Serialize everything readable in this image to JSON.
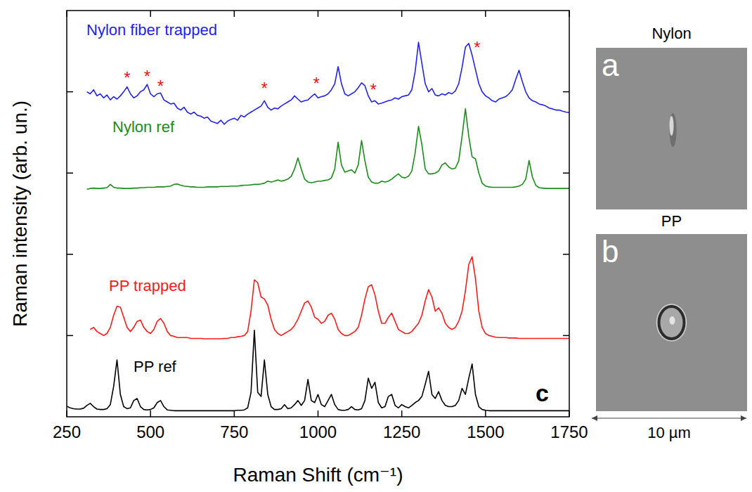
{
  "chart_data": {
    "type": "line",
    "x_label": "Raman Shift (cm⁻¹)",
    "y_label": "Raman intensity (arb. un.)",
    "panel_label": "c",
    "xlim": [
      250,
      1750
    ],
    "ylim": [
      0,
      10
    ],
    "xticks": [
      250,
      500,
      750,
      1000,
      1250,
      1500,
      1750
    ],
    "yticks": [
      2,
      4,
      6,
      8
    ],
    "tick_labels": "x",
    "grid": false,
    "x": [
      250,
      260,
      270,
      280,
      290,
      300,
      310,
      320,
      330,
      340,
      350,
      360,
      370,
      380,
      390,
      400,
      410,
      420,
      430,
      440,
      450,
      460,
      470,
      480,
      490,
      500,
      510,
      520,
      530,
      540,
      550,
      560,
      570,
      580,
      590,
      600,
      610,
      620,
      630,
      640,
      650,
      660,
      670,
      680,
      690,
      700,
      710,
      720,
      730,
      740,
      750,
      760,
      770,
      780,
      790,
      800,
      810,
      820,
      830,
      840,
      850,
      860,
      870,
      880,
      890,
      900,
      910,
      920,
      930,
      940,
      950,
      960,
      970,
      980,
      990,
      1000,
      1010,
      1020,
      1030,
      1040,
      1050,
      1060,
      1070,
      1080,
      1090,
      1100,
      1110,
      1120,
      1130,
      1140,
      1150,
      1160,
      1170,
      1180,
      1190,
      1200,
      1210,
      1220,
      1230,
      1240,
      1250,
      1260,
      1270,
      1280,
      1290,
      1300,
      1310,
      1320,
      1330,
      1340,
      1350,
      1360,
      1370,
      1380,
      1390,
      1400,
      1410,
      1420,
      1430,
      1440,
      1450,
      1460,
      1470,
      1480,
      1490,
      1500,
      1510,
      1520,
      1530,
      1540,
      1550,
      1560,
      1570,
      1580,
      1590,
      1600,
      1610,
      1620,
      1630,
      1640,
      1650,
      1660,
      1670,
      1680,
      1690,
      1700,
      1710,
      1720,
      1730,
      1740,
      1750
    ],
    "series": [
      {
        "name": "Nylon fiber trapped",
        "color": "#2222ee",
        "values": [
          null,
          null,
          null,
          null,
          null,
          null,
          8.0,
          7.95,
          8.05,
          7.9,
          7.95,
          7.85,
          7.92,
          7.8,
          7.88,
          7.82,
          7.9,
          8.0,
          8.12,
          7.95,
          7.85,
          7.9,
          8.0,
          8.05,
          8.18,
          7.95,
          7.88,
          7.95,
          7.97,
          7.8,
          7.75,
          7.7,
          7.72,
          7.6,
          7.55,
          7.62,
          7.5,
          7.45,
          7.5,
          7.42,
          7.4,
          7.35,
          7.38,
          7.28,
          7.25,
          7.22,
          7.3,
          7.2,
          7.28,
          7.32,
          7.35,
          7.3,
          7.42,
          7.38,
          7.45,
          7.5,
          7.55,
          7.6,
          7.65,
          7.78,
          7.62,
          7.55,
          7.6,
          7.58,
          7.65,
          7.7,
          7.75,
          7.8,
          7.9,
          7.82,
          7.75,
          7.78,
          7.8,
          7.88,
          7.95,
          7.85,
          7.88,
          7.9,
          7.95,
          8.05,
          8.2,
          8.62,
          8.2,
          7.95,
          7.9,
          7.95,
          8.0,
          8.1,
          8.22,
          8.15,
          7.9,
          7.75,
          7.78,
          7.7,
          7.72,
          7.75,
          7.78,
          7.8,
          7.85,
          7.82,
          7.88,
          7.9,
          7.92,
          8.05,
          8.5,
          9.22,
          8.7,
          8.2,
          8.0,
          8.08,
          7.92,
          7.9,
          7.95,
          7.92,
          7.98,
          7.95,
          8.02,
          8.2,
          8.6,
          9.1,
          9.19,
          8.9,
          8.55,
          8.2,
          8.0,
          7.9,
          7.85,
          7.78,
          7.75,
          7.82,
          7.85,
          7.88,
          7.95,
          8.05,
          8.3,
          8.53,
          8.25,
          8.0,
          7.85,
          7.78,
          7.75,
          7.7,
          7.68,
          7.65,
          7.6,
          7.58,
          7.55,
          7.55,
          7.52,
          7.5,
          7.49
        ]
      },
      {
        "name": "Nylon ref",
        "color": "#1a8c1a",
        "values": [
          null,
          null,
          null,
          null,
          null,
          null,
          5.6,
          5.62,
          5.63,
          5.62,
          5.62,
          5.63,
          5.64,
          5.72,
          5.65,
          5.63,
          5.63,
          5.62,
          5.62,
          5.62,
          5.63,
          5.63,
          5.64,
          5.64,
          5.65,
          5.65,
          5.65,
          5.66,
          5.66,
          5.66,
          5.67,
          5.68,
          5.72,
          5.73,
          5.7,
          5.68,
          5.67,
          5.66,
          5.66,
          5.65,
          5.65,
          5.65,
          5.66,
          5.66,
          5.66,
          5.66,
          5.67,
          5.67,
          5.67,
          5.68,
          5.68,
          5.68,
          5.69,
          5.7,
          5.7,
          5.71,
          5.72,
          5.72,
          5.73,
          5.75,
          5.8,
          5.78,
          5.8,
          5.83,
          5.8,
          5.82,
          5.85,
          5.92,
          6.1,
          6.37,
          6.1,
          5.85,
          5.78,
          5.76,
          5.78,
          5.8,
          5.8,
          5.82,
          5.83,
          5.88,
          6.1,
          6.76,
          6.2,
          6.02,
          6.05,
          6.08,
          6.0,
          6.2,
          6.8,
          6.3,
          5.9,
          5.78,
          5.75,
          5.75,
          5.8,
          5.78,
          5.8,
          5.85,
          5.92,
          5.98,
          5.9,
          5.88,
          5.92,
          6.05,
          6.5,
          7.15,
          6.7,
          6.1,
          5.98,
          5.98,
          6.0,
          6.05,
          6.2,
          6.25,
          6.15,
          6.1,
          6.12,
          6.3,
          6.9,
          7.58,
          6.9,
          6.4,
          6.35,
          6.0,
          5.75,
          5.68,
          5.66,
          5.65,
          5.65,
          5.65,
          5.65,
          5.65,
          5.65,
          5.65,
          5.66,
          5.68,
          5.72,
          5.85,
          6.31,
          5.9,
          5.7,
          5.64,
          5.63,
          5.62,
          5.62,
          5.62,
          5.62,
          5.62,
          5.62,
          5.62,
          5.62
        ]
      },
      {
        "name": "PP trapped",
        "color": "#ff1a1a",
        "values": [
          null,
          null,
          null,
          null,
          null,
          null,
          null,
          2.15,
          2.2,
          2.1,
          2.05,
          2.0,
          2.05,
          2.2,
          2.5,
          2.72,
          2.7,
          2.45,
          2.2,
          2.1,
          2.2,
          2.35,
          2.38,
          2.2,
          2.1,
          2.05,
          2.15,
          2.35,
          2.42,
          2.3,
          2.1,
          2.0,
          1.98,
          1.95,
          1.95,
          1.95,
          1.95,
          1.93,
          1.93,
          1.93,
          1.93,
          1.92,
          1.92,
          1.92,
          1.92,
          1.92,
          1.92,
          1.93,
          1.93,
          1.95,
          1.95,
          1.97,
          1.98,
          2.0,
          2.1,
          2.6,
          3.37,
          3.3,
          2.95,
          2.9,
          2.75,
          2.4,
          2.15,
          2.05,
          2.0,
          2.05,
          2.1,
          2.15,
          2.25,
          2.4,
          2.6,
          2.8,
          2.85,
          2.7,
          2.45,
          2.4,
          2.3,
          2.35,
          2.5,
          2.55,
          2.4,
          2.15,
          2.05,
          2.0,
          2.0,
          2.05,
          2.1,
          2.2,
          2.5,
          2.9,
          3.2,
          3.25,
          3.0,
          2.6,
          2.3,
          2.3,
          2.45,
          2.55,
          2.35,
          2.15,
          2.1,
          2.05,
          2.05,
          2.1,
          2.2,
          2.3,
          2.5,
          2.85,
          3.13,
          2.95,
          2.6,
          2.68,
          2.55,
          2.3,
          2.2,
          2.15,
          2.2,
          2.35,
          2.6,
          3.1,
          3.75,
          3.94,
          3.4,
          2.6,
          2.2,
          2.05,
          2.0,
          1.98,
          1.96,
          1.95,
          1.95,
          1.95,
          1.94,
          1.94,
          1.94,
          1.93,
          1.93,
          1.93,
          1.93,
          1.93,
          1.93,
          1.93,
          1.93,
          1.93,
          1.93,
          1.93,
          1.93,
          1.93,
          1.93,
          1.93,
          1.93
        ]
      },
      {
        "name": "PP ref",
        "color": "#000000",
        "values": [
          0.26,
          0.22,
          0.2,
          0.19,
          0.19,
          0.21,
          0.28,
          0.33,
          0.25,
          0.19,
          0.18,
          0.18,
          0.2,
          0.3,
          0.75,
          1.4,
          0.55,
          0.25,
          0.2,
          0.22,
          0.4,
          0.45,
          0.25,
          0.18,
          0.17,
          0.18,
          0.22,
          0.35,
          0.4,
          0.25,
          0.17,
          0.16,
          0.15,
          0.15,
          0.15,
          0.15,
          0.15,
          0.15,
          0.15,
          0.15,
          0.15,
          0.15,
          0.15,
          0.15,
          0.15,
          0.15,
          0.15,
          0.15,
          0.15,
          0.15,
          0.15,
          0.16,
          0.16,
          0.17,
          0.22,
          0.6,
          2.13,
          0.6,
          0.5,
          1.4,
          0.55,
          0.25,
          0.18,
          0.18,
          0.2,
          0.3,
          0.2,
          0.22,
          0.3,
          0.4,
          0.28,
          0.4,
          0.92,
          0.4,
          0.35,
          0.55,
          0.3,
          0.25,
          0.4,
          0.55,
          0.3,
          0.18,
          0.16,
          0.16,
          0.18,
          0.25,
          0.18,
          0.17,
          0.2,
          0.4,
          0.95,
          0.7,
          0.85,
          0.35,
          0.22,
          0.25,
          0.5,
          0.55,
          0.28,
          0.22,
          0.3,
          0.25,
          0.22,
          0.28,
          0.35,
          0.4,
          0.5,
          0.8,
          1.12,
          0.55,
          0.45,
          0.62,
          0.4,
          0.28,
          0.25,
          0.25,
          0.28,
          0.4,
          0.7,
          0.55,
          0.95,
          1.3,
          0.55,
          0.25,
          0.18,
          0.16,
          0.15,
          0.15,
          0.15,
          0.15,
          0.15,
          0.15,
          0.15,
          0.15,
          0.15,
          0.15,
          0.15,
          0.15,
          0.15,
          0.15,
          0.15,
          0.15,
          0.15,
          0.15,
          0.15,
          0.15,
          0.15,
          0.15,
          0.15,
          0.15,
          0.15
        ]
      }
    ],
    "annotations": [
      {
        "text": "*",
        "x": 430,
        "y": 8.44
      },
      {
        "text": "*",
        "x": 490,
        "y": 8.48
      },
      {
        "text": "*",
        "x": 530,
        "y": 8.24
      },
      {
        "text": "*",
        "x": 840,
        "y": 8.18
      },
      {
        "text": "*",
        "x": 995,
        "y": 8.3
      },
      {
        "text": "*",
        "x": 1165,
        "y": 8.15
      },
      {
        "text": "*",
        "x": 1475,
        "y": 9.19
      }
    ]
  },
  "images": [
    {
      "letter": "a",
      "title": "Nylon"
    },
    {
      "letter": "b",
      "title": "PP"
    }
  ],
  "scale_bar": {
    "label": "10 µm"
  }
}
